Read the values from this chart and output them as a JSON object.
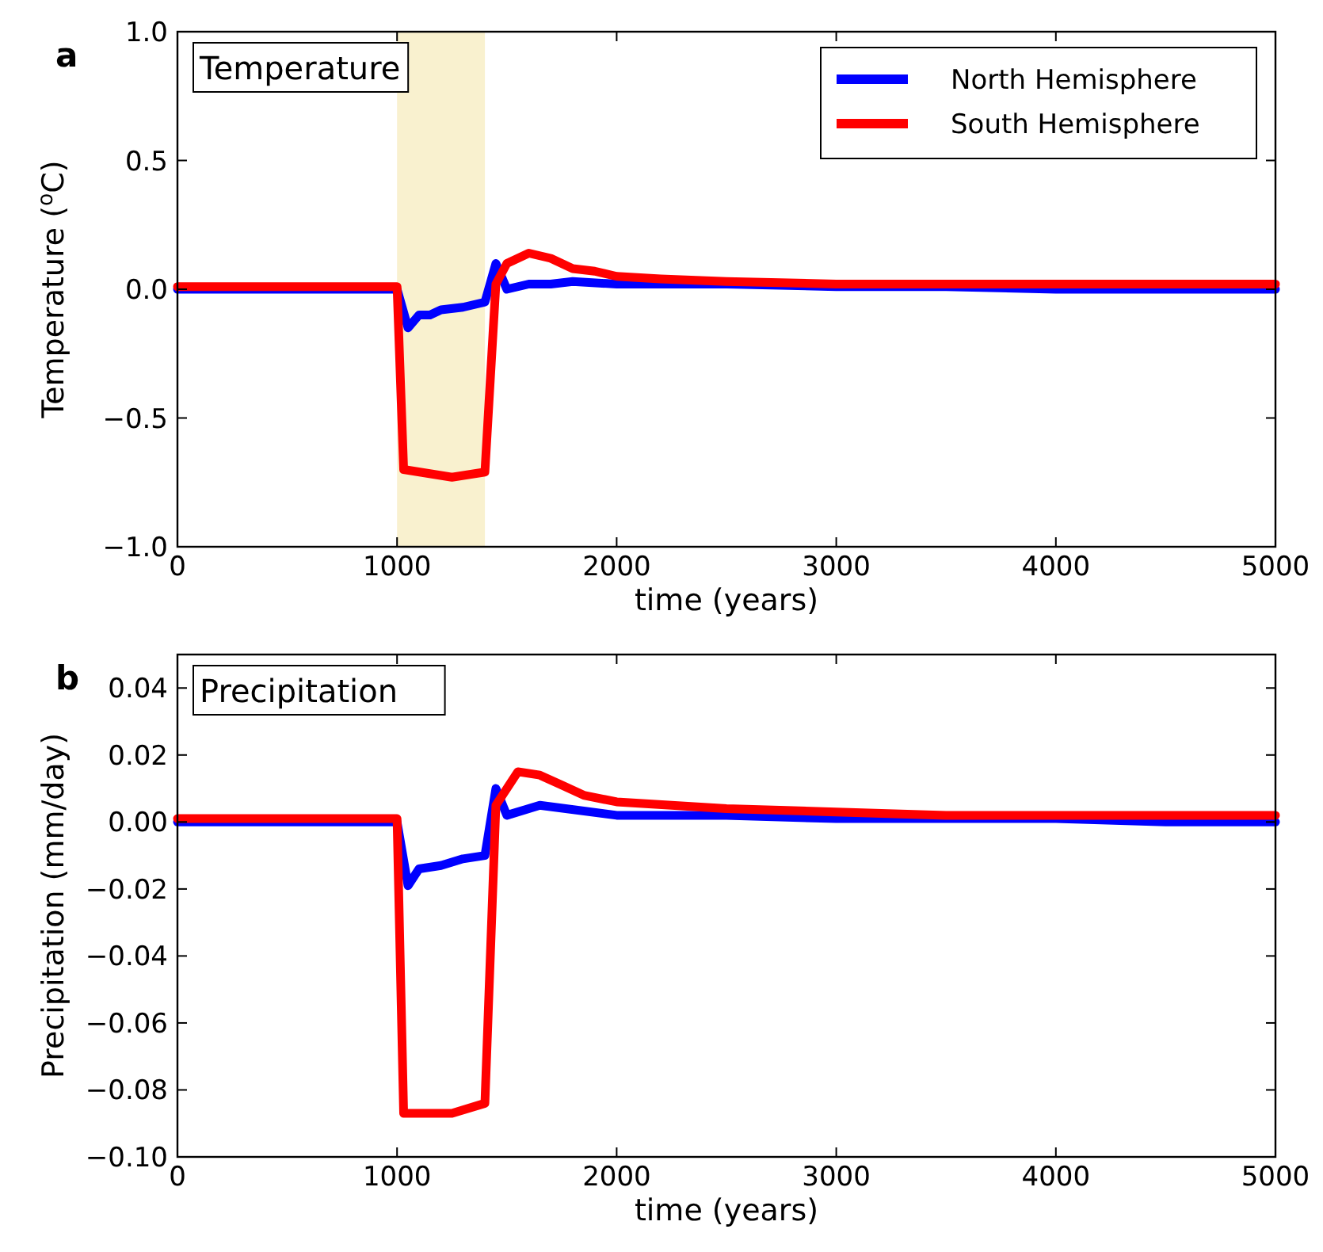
{
  "chart_data": [
    {
      "type": "line",
      "annotations": [
        "a",
        "Temperature"
      ],
      "xlabel": "time (years)",
      "ylabel": "Temperature ($^{o}$C)",
      "legend": "top right",
      "grid": false,
      "xlim": [
        0,
        5000
      ],
      "xticks": [
        0,
        1000,
        2000,
        3000,
        4000,
        5000
      ],
      "ylim": [
        -1,
        1
      ],
      "yticks": [
        {
          "value": -1,
          "label": "−1.0"
        },
        {
          "value": -0.5,
          "label": "−0.5"
        },
        {
          "value": 0,
          "label": "0.0"
        },
        {
          "value": 0.5,
          "label": "0.5"
        },
        {
          "value": 1,
          "label": "1.0"
        }
      ],
      "bands": [
        {
          "axis": "x",
          "from": 1000,
          "to": 1400,
          "color": "#f9f1cf"
        }
      ],
      "series": [
        {
          "name": "North Hemisphere",
          "color": "#0000ff",
          "x": [
            0,
            250,
            500,
            750,
            1000,
            1050,
            1100,
            1150,
            1200,
            1300,
            1400,
            1450,
            1500,
            1600,
            1700,
            1800,
            2000,
            2500,
            3000,
            3500,
            4000,
            4500,
            5000
          ],
          "values": [
            0,
            0,
            0,
            0,
            0,
            -0.15,
            -0.1,
            -0.1,
            -0.08,
            -0.07,
            -0.05,
            0.1,
            0,
            0.02,
            0.02,
            0.03,
            0.02,
            0.02,
            0.01,
            0.01,
            0,
            0,
            0
          ]
        },
        {
          "name": "South Hemisphere",
          "color": "#ff0000",
          "x": [
            0,
            250,
            500,
            750,
            1000,
            1030,
            1250,
            1400,
            1450,
            1500,
            1600,
            1700,
            1800,
            1900,
            2000,
            2200,
            2500,
            3000,
            3500,
            4000,
            4500,
            5000
          ],
          "values": [
            0.01,
            0.01,
            0.01,
            0.01,
            0.01,
            -0.7,
            -0.73,
            -0.71,
            0.02,
            0.1,
            0.14,
            0.12,
            0.08,
            0.07,
            0.05,
            0.04,
            0.03,
            0.02,
            0.02,
            0.02,
            0.02,
            0.02
          ]
        }
      ]
    },
    {
      "type": "line",
      "annotations": [
        "b",
        "Precipitation"
      ],
      "xlabel": "time (years)",
      "ylabel": "Precipitation (mm/day)",
      "grid": false,
      "xlim": [
        0,
        5000
      ],
      "xticks": [
        0,
        1000,
        2000,
        3000,
        4000,
        5000
      ],
      "ylim": [
        -0.1,
        0.05
      ],
      "yticks": [
        {
          "value": -0.1,
          "label": "−0.10"
        },
        {
          "value": -0.08,
          "label": "−0.08"
        },
        {
          "value": -0.06,
          "label": "−0.06"
        },
        {
          "value": -0.04,
          "label": "−0.04"
        },
        {
          "value": -0.02,
          "label": "−0.02"
        },
        {
          "value": 0,
          "label": "0.00"
        },
        {
          "value": 0.02,
          "label": "0.02"
        },
        {
          "value": 0.04,
          "label": "0.04"
        }
      ],
      "series": [
        {
          "color": "#0000ff",
          "x": [
            0,
            250,
            500,
            750,
            1000,
            1050,
            1100,
            1200,
            1300,
            1400,
            1450,
            1500,
            1650,
            2000,
            2500,
            3000,
            3500,
            4000,
            4500,
            5000
          ],
          "values": [
            0,
            0,
            0,
            0,
            0,
            -0.019,
            -0.014,
            -0.013,
            -0.011,
            -0.01,
            0.01,
            0.002,
            0.005,
            0.002,
            0.002,
            0.001,
            0.001,
            0.001,
            0,
            0
          ]
        },
        {
          "color": "#ff0000",
          "x": [
            0,
            250,
            500,
            750,
            1000,
            1030,
            1250,
            1400,
            1450,
            1550,
            1650,
            1750,
            1850,
            2000,
            2500,
            3000,
            3500,
            4000,
            4500,
            5000
          ],
          "values": [
            0.001,
            0.001,
            0.001,
            0.001,
            0.001,
            -0.087,
            -0.087,
            -0.084,
            0.005,
            0.015,
            0.014,
            0.011,
            0.008,
            0.006,
            0.004,
            0.003,
            0.002,
            0.002,
            0.002,
            0.002
          ]
        }
      ]
    }
  ]
}
